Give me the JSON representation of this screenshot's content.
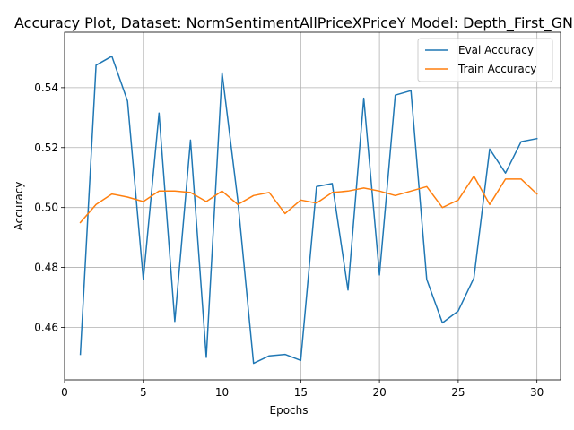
{
  "chart_data": {
    "type": "line",
    "title": "Accuracy Plot, Dataset: NormSentimentAllPriceXPriceY Model: Depth_First_GNN",
    "xlabel": "Epochs",
    "ylabel": "Accuracy",
    "xlim": [
      0,
      31.5
    ],
    "ylim": [
      0.4425,
      0.5585
    ],
    "xticks": [
      0,
      5,
      10,
      15,
      20,
      25,
      30
    ],
    "yticks": [
      0.46,
      0.48,
      0.5,
      0.52,
      0.54
    ],
    "ytick_labels": [
      "0.46",
      "0.48",
      "0.50",
      "0.52",
      "0.54"
    ],
    "grid": true,
    "legend_position": "top-right",
    "x": [
      1,
      2,
      3,
      4,
      5,
      6,
      7,
      8,
      9,
      10,
      11,
      12,
      13,
      14,
      15,
      16,
      17,
      18,
      19,
      20,
      21,
      22,
      23,
      24,
      25,
      26,
      27,
      28,
      29,
      30
    ],
    "series": [
      {
        "name": "Eval Accuracy",
        "color": "#1f77b4",
        "values": [
          0.451,
          0.5475,
          0.5505,
          0.5355,
          0.476,
          0.5315,
          0.462,
          0.5225,
          0.45,
          0.545,
          0.5025,
          0.448,
          0.4505,
          0.451,
          0.449,
          0.507,
          0.508,
          0.4725,
          0.5365,
          0.4775,
          0.5375,
          0.539,
          0.476,
          0.4615,
          0.4655,
          0.4765,
          0.5195,
          0.5115,
          0.522,
          0.523
        ]
      },
      {
        "name": "Train Accuracy",
        "color": "#ff7f0e",
        "values": [
          0.495,
          0.501,
          0.5045,
          0.5035,
          0.502,
          0.5055,
          0.5055,
          0.505,
          0.502,
          0.5055,
          0.501,
          0.504,
          0.505,
          0.498,
          0.5025,
          0.5015,
          0.505,
          0.5055,
          0.5065,
          0.5055,
          0.504,
          0.5055,
          0.507,
          0.5,
          0.5025,
          0.5105,
          0.501,
          0.5095,
          0.5095,
          0.5045
        ]
      }
    ]
  }
}
